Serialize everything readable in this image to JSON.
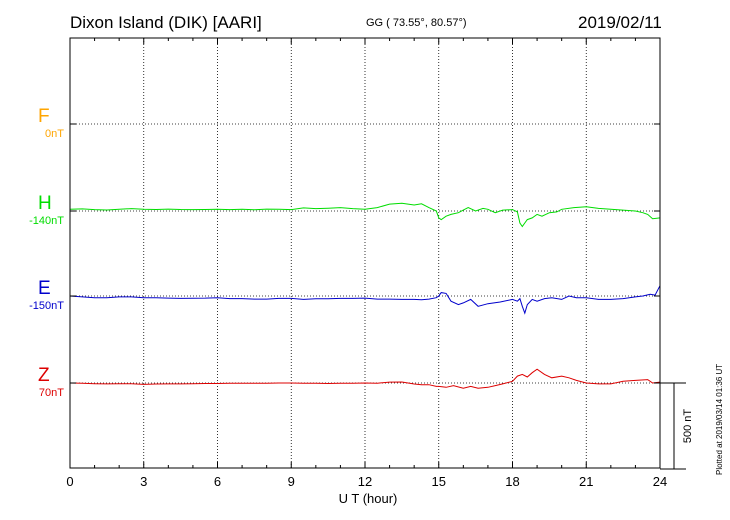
{
  "header": {
    "station": "Dixon Island (DIK)  [AARI]",
    "coords": "GG ( 73.55°,  80.57°)",
    "date": "2019/02/11"
  },
  "footer": {
    "plotted": "Plotted at 2019/03/14 01:36 UT"
  },
  "chart_data": {
    "type": "line",
    "title": "Dixon Island (DIK)  [AARI]",
    "xlabel": "U T (hour)",
    "ylabel": "",
    "xlim": [
      0,
      24
    ],
    "xticks": [
      0,
      3,
      6,
      9,
      12,
      15,
      18,
      21,
      24
    ],
    "grid": true,
    "scale_bar": {
      "label": "500 nT",
      "value_nT": 500
    },
    "series": [
      {
        "name": "F",
        "baseline_label": "0nT",
        "color": "#ffa500",
        "x": [],
        "y": []
      },
      {
        "name": "H",
        "baseline_label": "-140nT",
        "color": "#00dd00",
        "x": [
          0,
          0.5,
          1,
          1.5,
          2,
          2.5,
          3,
          3.5,
          4,
          4.5,
          5,
          5.5,
          6,
          6.5,
          7,
          7.5,
          8,
          8.5,
          9,
          9.5,
          10,
          10.5,
          11,
          11.5,
          12,
          12.5,
          13,
          13.5,
          14,
          14.3,
          14.6,
          14.9,
          15.0,
          15.1,
          15.3,
          15.5,
          15.8,
          16.0,
          16.2,
          16.5,
          16.8,
          17.0,
          17.3,
          17.6,
          18.0,
          18.2,
          18.3,
          18.4,
          18.5,
          18.6,
          18.8,
          19.0,
          19.2,
          19.5,
          19.8,
          20.0,
          20.5,
          21,
          21.5,
          22,
          22.5,
          23,
          23.3,
          23.5,
          23.7,
          24
        ],
        "y": [
          10,
          12,
          8,
          6,
          10,
          14,
          10,
          9,
          11,
          9,
          8,
          9,
          10,
          8,
          10,
          7,
          11,
          10,
          8,
          18,
          14,
          16,
          20,
          14,
          10,
          20,
          40,
          45,
          35,
          42,
          20,
          0,
          -40,
          -50,
          -30,
          -20,
          -10,
          5,
          20,
          0,
          15,
          10,
          -10,
          5,
          8,
          -5,
          -70,
          -90,
          -70,
          -50,
          -40,
          -20,
          -30,
          -10,
          -5,
          10,
          20,
          25,
          15,
          10,
          5,
          0,
          -10,
          -20,
          -45,
          -40
        ]
      },
      {
        "name": "E",
        "baseline_label": "-150nT",
        "color": "#0000cc",
        "x": [
          0,
          0.5,
          1,
          1.5,
          2,
          2.5,
          3,
          3.5,
          4,
          4.5,
          5,
          5.5,
          6,
          6.5,
          7,
          7.5,
          8,
          8.5,
          9,
          9.5,
          10,
          10.5,
          11,
          11.5,
          12,
          12.5,
          13,
          13.5,
          14,
          14.3,
          14.6,
          14.9,
          15.0,
          15.1,
          15.3,
          15.5,
          15.8,
          16.0,
          16.3,
          16.6,
          17.0,
          17.5,
          18.0,
          18.2,
          18.3,
          18.4,
          18.5,
          18.6,
          18.8,
          19.0,
          19.3,
          19.6,
          20.0,
          20.3,
          20.6,
          21.0,
          21.5,
          22,
          22.5,
          23,
          23.3,
          23.6,
          23.8,
          24
        ],
        "y": [
          0,
          -5,
          -10,
          -10,
          -5,
          -5,
          -10,
          -10,
          -12,
          -14,
          -13,
          -12,
          -10,
          -15,
          -15,
          -18,
          -18,
          -14,
          -14,
          -20,
          -16,
          -16,
          -14,
          -14,
          -12,
          -18,
          -18,
          -20,
          -20,
          -22,
          -18,
          -10,
          0,
          20,
          15,
          -30,
          -50,
          -40,
          -20,
          -60,
          -45,
          -35,
          -20,
          -30,
          -15,
          -60,
          -100,
          -50,
          -20,
          -30,
          -15,
          -10,
          -20,
          0,
          -10,
          -10,
          -20,
          -20,
          -15,
          -5,
          0,
          10,
          5,
          60
        ]
      },
      {
        "name": "Z",
        "baseline_label": "70nT",
        "color": "#dd0000",
        "x": [
          0,
          0.5,
          1,
          1.5,
          2,
          2.5,
          3,
          3.5,
          4,
          4.5,
          5,
          5.5,
          6,
          6.5,
          7,
          7.5,
          8,
          8.5,
          9,
          9.5,
          10,
          10.5,
          11,
          11.5,
          12,
          12.5,
          13,
          13.5,
          14,
          14.3,
          14.6,
          14.9,
          15.0,
          15.3,
          15.6,
          16.0,
          16.3,
          16.6,
          17.0,
          17.3,
          17.6,
          18.0,
          18.2,
          18.4,
          18.6,
          18.8,
          19.0,
          19.3,
          19.6,
          20.0,
          20.3,
          20.6,
          21.0,
          21.5,
          22,
          22.5,
          23,
          23.5,
          23.7,
          24
        ],
        "y": [
          0,
          -2,
          -4,
          -5,
          -4,
          -4,
          -8,
          -6,
          -5,
          -5,
          -4,
          -3,
          -3,
          -2,
          -1,
          -2,
          -2,
          0,
          0,
          -1,
          -2,
          -3,
          -1,
          -1,
          0,
          -1,
          5,
          6,
          -6,
          -10,
          -10,
          -20,
          -20,
          -25,
          -15,
          -30,
          -20,
          -30,
          -25,
          -15,
          -5,
          10,
          40,
          50,
          35,
          60,
          80,
          50,
          30,
          40,
          30,
          15,
          0,
          -5,
          -5,
          10,
          15,
          20,
          0,
          5
        ]
      }
    ]
  }
}
